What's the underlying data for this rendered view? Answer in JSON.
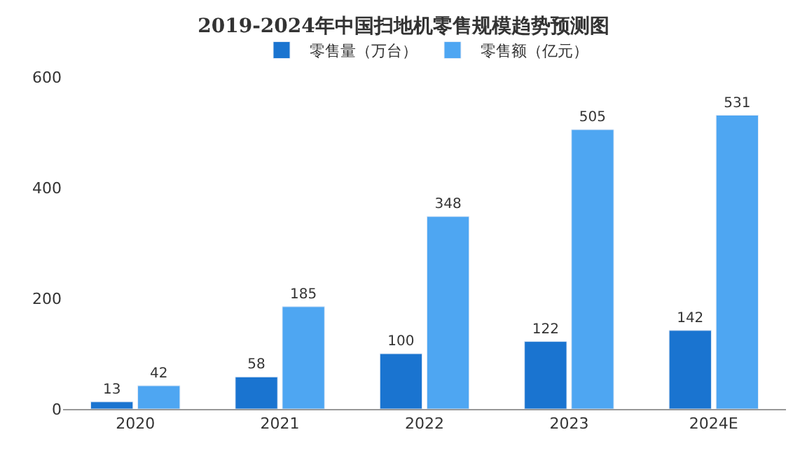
{
  "chart_data": {
    "type": "bar",
    "title": "2019-2024年中国扫地机零售规模趋势预测图",
    "categories": [
      "2020",
      "2021",
      "2022",
      "2023",
      "2024E"
    ],
    "series": [
      {
        "name": "零售量（万台）",
        "color": "#1a74d0",
        "values": [
          13,
          58,
          100,
          122,
          142
        ]
      },
      {
        "name": "零售额（亿元）",
        "color": "#4ea6f2",
        "values": [
          42,
          185,
          348,
          505,
          531
        ]
      }
    ],
    "ylim": [
      0,
      600
    ],
    "yticks": [
      0,
      200,
      400,
      600
    ],
    "legend": "top",
    "data_labels": true
  }
}
